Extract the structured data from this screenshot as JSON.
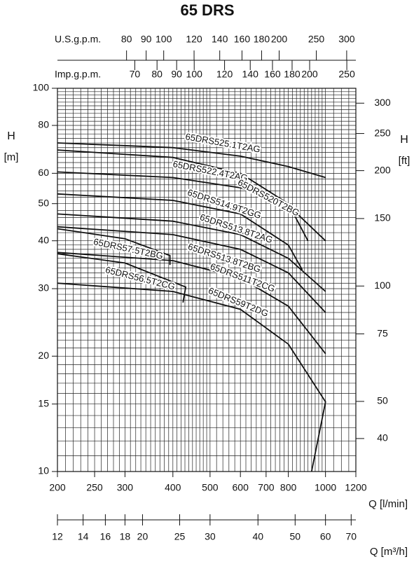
{
  "chart_data": {
    "type": "line",
    "title": "65 DRS",
    "x_label": "Q [l/min]",
    "y_label": "H",
    "y_unit": "[m]",
    "xscale": "log",
    "yscale": "log",
    "grid": true,
    "color": "#111111",
    "xlim": [
      200,
      1200
    ],
    "xticks": [
      200,
      250,
      300,
      400,
      500,
      600,
      700,
      800,
      1000,
      1200
    ],
    "ylim": [
      10,
      100
    ],
    "yticks": [
      10,
      15,
      20,
      30,
      40,
      50,
      60,
      80,
      100
    ],
    "xgrid": [
      200,
      210,
      220,
      230,
      240,
      250,
      260,
      270,
      280,
      290,
      300,
      310,
      320,
      330,
      340,
      350,
      360,
      370,
      380,
      390,
      400,
      410,
      420,
      430,
      440,
      450,
      460,
      470,
      480,
      490,
      500,
      520,
      540,
      560,
      580,
      600,
      620,
      640,
      660,
      680,
      700,
      720,
      740,
      760,
      780,
      800,
      820,
      840,
      860,
      880,
      900,
      920,
      940,
      960,
      980,
      1000,
      1050,
      1100,
      1150,
      1200
    ],
    "ygrid": [
      10,
      11,
      12,
      13,
      14,
      15,
      16,
      17,
      18,
      19,
      20,
      21,
      22,
      23,
      24,
      25,
      26,
      27,
      28,
      29,
      30,
      31,
      32,
      33,
      34,
      35,
      36,
      37,
      38,
      39,
      40,
      42,
      44,
      46,
      48,
      50,
      52,
      54,
      56,
      58,
      60,
      62,
      64,
      66,
      68,
      70,
      72,
      74,
      76,
      78,
      80,
      82,
      84,
      86,
      88,
      90,
      92,
      94,
      96,
      98,
      100
    ],
    "secondary_axes": [
      {
        "position": "top",
        "label": "U.S.g.p.m.",
        "lim": [
          52.834,
          317.0
        ],
        "ticks": [
          80,
          90,
          100,
          120,
          140,
          160,
          180,
          200,
          250,
          300
        ]
      },
      {
        "position": "top-inner",
        "label": "Imp.g.p.m.",
        "lim": [
          43.994,
          263.96
        ],
        "ticks": [
          70,
          80,
          90,
          100,
          120,
          140,
          160,
          180,
          200,
          250
        ]
      },
      {
        "position": "right",
        "label": "H",
        "unit": "[ft]",
        "lim": [
          32.808,
          328.08
        ],
        "ticks": [
          40,
          50,
          75,
          100,
          150,
          200,
          250,
          300
        ]
      },
      {
        "position": "bottom",
        "label": "Q [m³/h]",
        "lim": [
          12,
          72
        ],
        "ticks": [
          12,
          14,
          16,
          18,
          20,
          25,
          30,
          40,
          50,
          60,
          70
        ]
      }
    ],
    "series": [
      {
        "name": "65DRS525.1T2AG",
        "x": [
          200,
          400,
          600,
          800,
          1000
        ],
        "values": [
          72,
          70,
          66.5,
          62.5,
          58.5
        ]
      },
      {
        "name": "65DRS522.4T2AG",
        "x": [
          200,
          400,
          600,
          800,
          900
        ],
        "values": [
          69,
          66,
          60,
          50,
          40
        ]
      },
      {
        "name": "65DRS520T2BG",
        "x": [
          200,
          400,
          600,
          800,
          1000
        ],
        "values": [
          60.5,
          58.5,
          55,
          49.5,
          40
        ]
      },
      {
        "name": "65DRS514.9T2GG",
        "x": [
          200,
          400,
          600,
          800,
          870
        ],
        "values": [
          53,
          51,
          47,
          39,
          33.6
        ]
      },
      {
        "name": "65DRS513.8T2AG",
        "x": [
          200,
          400,
          600,
          800,
          1000
        ],
        "values": [
          47,
          45,
          41.5,
          36,
          29.5
        ]
      },
      {
        "name": "65DRS513.8T2BG",
        "x": [
          200,
          400,
          600,
          800,
          1000
        ],
        "values": [
          43.5,
          41.5,
          38,
          33,
          26
        ]
      },
      {
        "name": "65DRS511T2CG",
        "x": [
          200,
          400,
          600,
          800,
          1000
        ],
        "values": [
          37.3,
          35.5,
          32,
          27,
          20.3
        ]
      },
      {
        "name": "65DRS59T2DG",
        "x": [
          200,
          400,
          600,
          800,
          1000,
          920
        ],
        "values": [
          31,
          29.5,
          26.5,
          21.5,
          15.2,
          10
        ]
      },
      {
        "name": "65DRS57.5T2BG",
        "x": [
          200,
          300,
          393,
          393
        ],
        "values": [
          43,
          40.5,
          36.6,
          34.6
        ]
      },
      {
        "name": "65DRS56.5T2CG",
        "x": [
          200,
          300,
          432,
          425
        ],
        "values": [
          37,
          35,
          30.3,
          27.6
        ]
      }
    ]
  }
}
